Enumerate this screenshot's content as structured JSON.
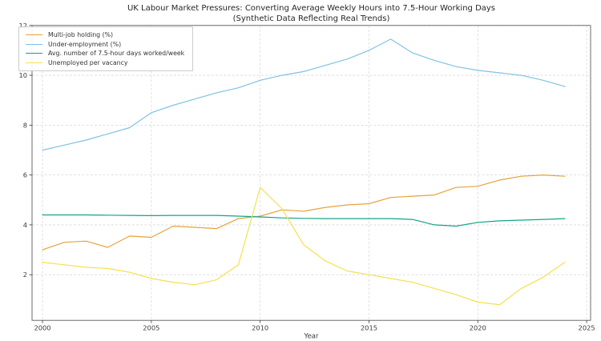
{
  "chart_data": {
    "type": "line",
    "title": "UK Labour Market Pressures: Converting Average Weekly Hours into 7.5-Hour Working Days",
    "subtitle": "(Synthetic Data Reflecting Real Trends)",
    "xlabel": "Year",
    "ylabel": "",
    "xlim": [
      1999.52,
      2025.18
    ],
    "ylim": [
      0.17,
      12.0
    ],
    "x_ticks": [
      2000,
      2005,
      2010,
      2015,
      2020,
      2025
    ],
    "y_ticks": [
      2,
      4,
      6,
      8,
      10,
      12
    ],
    "grid": "dashed",
    "legend_position": "upper-left",
    "x": [
      2000,
      2001,
      2002,
      2003,
      2004,
      2005,
      2006,
      2007,
      2008,
      2009,
      2010,
      2011,
      2012,
      2013,
      2014,
      2015,
      2016,
      2017,
      2018,
      2019,
      2020,
      2021,
      2022,
      2023,
      2024
    ],
    "series": [
      {
        "name": "Multi-job holding (%)",
        "color": "#E5A23B",
        "values": [
          3.0,
          3.3,
          3.35,
          3.1,
          3.55,
          3.5,
          3.95,
          3.9,
          3.85,
          4.25,
          4.35,
          4.6,
          4.55,
          4.7,
          4.8,
          4.85,
          5.1,
          5.15,
          5.2,
          5.5,
          5.55,
          5.8,
          5.95,
          6.0,
          5.95
        ]
      },
      {
        "name": "Under-employment (%)",
        "color": "#7FC2E5",
        "values": [
          7.0,
          7.2,
          7.4,
          7.65,
          7.9,
          8.5,
          8.8,
          9.05,
          9.3,
          9.5,
          9.8,
          10.0,
          10.15,
          10.4,
          10.65,
          11.0,
          11.45,
          10.9,
          10.6,
          10.35,
          10.2,
          10.1,
          10.0,
          9.8,
          9.55
        ]
      },
      {
        "name": "Avg. number of 7.5-hour days worked/week",
        "color": "#14A38A",
        "values": [
          4.4,
          4.4,
          4.4,
          4.39,
          4.38,
          4.37,
          4.38,
          4.38,
          4.38,
          4.35,
          4.32,
          4.28,
          4.26,
          4.25,
          4.25,
          4.25,
          4.25,
          4.22,
          4.0,
          3.95,
          4.1,
          4.16,
          4.19,
          4.22,
          4.25
        ]
      },
      {
        "name": "Unemployed per vacancy",
        "color": "#F4E14C",
        "values": [
          2.5,
          2.4,
          2.3,
          2.25,
          2.1,
          1.85,
          1.7,
          1.6,
          1.8,
          2.4,
          5.5,
          4.65,
          3.2,
          2.55,
          2.15,
          2.0,
          1.85,
          1.7,
          1.45,
          1.2,
          0.9,
          0.8,
          1.45,
          1.9,
          2.5
        ]
      }
    ],
    "style": {
      "grid_color": "#d9d9d9",
      "spine_color": "#5a5a5a",
      "tick_color": "#3a3a3a",
      "background": "#ffffff",
      "line_width": 1.2
    }
  }
}
